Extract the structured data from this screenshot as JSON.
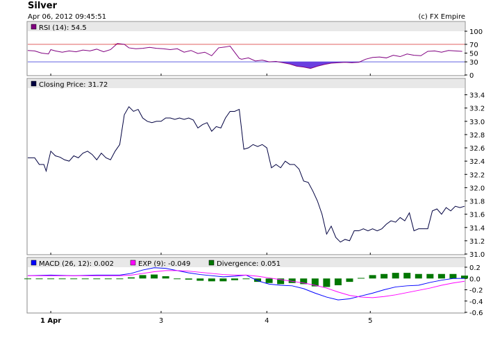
{
  "header": {
    "title": "Silver",
    "timestamp": "Apr 06, 2012 09:45:51",
    "credit": "(c) FX Empire"
  },
  "rsi": {
    "legend": "RSI (14): 54.5",
    "legend_color": "#800080",
    "overbought": 70,
    "oversold": 30,
    "y_ticks": [
      0,
      30,
      50,
      70,
      100
    ],
    "ylim": [
      0,
      100
    ]
  },
  "price": {
    "legend": "Closing Price: 31.72",
    "legend_color": "#000040",
    "y_ticks": [
      31.0,
      31.2,
      31.4,
      31.6,
      31.8,
      32.0,
      32.2,
      32.4,
      32.6,
      32.8,
      33.0,
      33.2,
      33.4
    ],
    "ylim": [
      31.0,
      33.5
    ]
  },
  "macd": {
    "legend_macd": "MACD (26, 12): 0.002",
    "legend_exp": "EXP (9): -0.049",
    "legend_div": "Divergence: 0.051",
    "colors": {
      "macd": "#0000ff",
      "exp": "#ff00ff",
      "div": "#007700"
    },
    "y_ticks": [
      -0.6,
      -0.4,
      -0.2,
      0.0,
      0.2
    ],
    "ylim": [
      -0.6,
      0.2
    ]
  },
  "x_axis": {
    "labels": [
      {
        "label": "1 Apr",
        "x": 0.1
      },
      {
        "label": "3",
        "x": 0.58
      },
      {
        "label": "4",
        "x": 1.04
      },
      {
        "label": "5",
        "x": 1.49
      }
    ]
  },
  "chart_data": [
    {
      "type": "line",
      "name": "RSI (14)",
      "x": [
        0,
        0.03,
        0.06,
        0.09,
        0.1,
        0.12,
        0.15,
        0.18,
        0.21,
        0.24,
        0.27,
        0.3,
        0.33,
        0.36,
        0.39,
        0.42,
        0.44,
        0.47,
        0.5,
        0.53,
        0.56,
        0.59,
        0.62,
        0.65,
        0.68,
        0.71,
        0.74,
        0.77,
        0.8,
        0.83,
        0.86,
        0.88,
        0.92,
        0.93,
        0.96,
        0.99,
        1.02,
        1.05,
        1.08,
        1.11,
        1.14,
        1.17,
        1.2,
        1.23,
        1.26,
        1.29,
        1.32,
        1.35,
        1.38,
        1.41,
        1.44,
        1.47,
        1.5,
        1.53,
        1.56,
        1.59,
        1.62,
        1.65,
        1.68,
        1.71,
        1.74,
        1.77,
        1.8,
        1.83,
        1.86,
        1.89
      ],
      "values": [
        56,
        55,
        50,
        48,
        58,
        55,
        52,
        55,
        53,
        57,
        55,
        59,
        53,
        58,
        72,
        70,
        62,
        60,
        61,
        63,
        61,
        60,
        58,
        60,
        52,
        56,
        49,
        52,
        44,
        62,
        64,
        66,
        38,
        36,
        39,
        32,
        34,
        30,
        31,
        28,
        25,
        20,
        18,
        15,
        20,
        24,
        27,
        28,
        29,
        28,
        29,
        36,
        40,
        41,
        39,
        45,
        42,
        48,
        45,
        44,
        54,
        55,
        52,
        56,
        55,
        54
      ]
    },
    {
      "type": "line",
      "name": "Closing Price",
      "x": [
        0,
        0.03,
        0.05,
        0.07,
        0.08,
        0.1,
        0.12,
        0.14,
        0.16,
        0.18,
        0.2,
        0.22,
        0.24,
        0.26,
        0.28,
        0.3,
        0.32,
        0.34,
        0.36,
        0.38,
        0.4,
        0.42,
        0.44,
        0.46,
        0.48,
        0.5,
        0.52,
        0.54,
        0.56,
        0.58,
        0.6,
        0.62,
        0.64,
        0.66,
        0.68,
        0.7,
        0.72,
        0.74,
        0.76,
        0.78,
        0.8,
        0.82,
        0.84,
        0.86,
        0.88,
        0.9,
        0.92,
        0.94,
        0.96,
        0.98,
        1.0,
        1.02,
        1.04,
        1.06,
        1.08,
        1.1,
        1.12,
        1.14,
        1.16,
        1.18,
        1.2,
        1.22,
        1.24,
        1.26,
        1.28,
        1.3,
        1.32,
        1.34,
        1.36,
        1.38,
        1.4,
        1.42,
        1.44,
        1.46,
        1.48,
        1.5,
        1.52,
        1.54,
        1.56,
        1.58,
        1.6,
        1.62,
        1.64,
        1.66,
        1.68,
        1.7,
        1.72,
        1.74,
        1.76,
        1.78,
        1.8,
        1.82,
        1.84,
        1.86,
        1.88,
        1.9
      ],
      "values": [
        32.45,
        32.45,
        32.35,
        32.35,
        32.25,
        32.55,
        32.48,
        32.46,
        32.42,
        32.4,
        32.48,
        32.45,
        32.52,
        32.55,
        32.5,
        32.42,
        32.52,
        32.45,
        32.42,
        32.55,
        32.65,
        33.1,
        33.22,
        33.15,
        33.18,
        33.05,
        33.0,
        32.98,
        33.0,
        33.0,
        33.05,
        33.05,
        33.03,
        33.05,
        33.03,
        33.05,
        33.02,
        32.9,
        32.95,
        32.98,
        32.85,
        32.92,
        32.9,
        33.05,
        33.15,
        33.15,
        33.18,
        32.58,
        32.6,
        32.65,
        32.62,
        32.65,
        32.6,
        32.3,
        32.35,
        32.3,
        32.4,
        32.35,
        32.35,
        32.28,
        32.1,
        32.08,
        31.95,
        31.8,
        31.6,
        31.3,
        31.42,
        31.25,
        31.18,
        31.22,
        31.2,
        31.35,
        31.35,
        31.38,
        31.35,
        31.38,
        31.35,
        31.38,
        31.45,
        31.5,
        31.48,
        31.55,
        31.5,
        31.62,
        31.35,
        31.38,
        31.38,
        31.38,
        31.65,
        31.68,
        31.6,
        31.7,
        31.65,
        31.72,
        31.7,
        31.72
      ]
    },
    {
      "type": "line",
      "name": "MACD (26, 12)",
      "x": [
        0,
        0.1,
        0.2,
        0.3,
        0.4,
        0.45,
        0.5,
        0.55,
        0.6,
        0.65,
        0.7,
        0.75,
        0.8,
        0.85,
        0.9,
        0.95,
        1.0,
        1.05,
        1.1,
        1.15,
        1.2,
        1.25,
        1.3,
        1.35,
        1.4,
        1.45,
        1.5,
        1.55,
        1.6,
        1.65,
        1.7,
        1.75,
        1.8,
        1.85,
        1.9
      ],
      "values": [
        0.05,
        0.06,
        0.05,
        0.06,
        0.06,
        0.09,
        0.15,
        0.19,
        0.18,
        0.14,
        0.1,
        0.07,
        0.05,
        0.03,
        0.04,
        0.06,
        -0.04,
        -0.1,
        -0.12,
        -0.13,
        -0.18,
        -0.26,
        -0.33,
        -0.38,
        -0.36,
        -0.31,
        -0.26,
        -0.2,
        -0.15,
        -0.13,
        -0.12,
        -0.07,
        -0.03,
        0.0,
        0.002
      ]
    },
    {
      "type": "line",
      "name": "EXP (9)",
      "x": [
        0,
        0.1,
        0.2,
        0.3,
        0.4,
        0.45,
        0.5,
        0.55,
        0.6,
        0.65,
        0.7,
        0.75,
        0.8,
        0.85,
        0.9,
        0.95,
        1.0,
        1.05,
        1.1,
        1.15,
        1.2,
        1.25,
        1.3,
        1.35,
        1.4,
        1.45,
        1.5,
        1.55,
        1.6,
        1.65,
        1.7,
        1.75,
        1.8,
        1.85,
        1.9
      ],
      "values": [
        0.05,
        0.05,
        0.05,
        0.05,
        0.05,
        0.06,
        0.09,
        0.12,
        0.14,
        0.14,
        0.13,
        0.11,
        0.09,
        0.07,
        0.06,
        0.06,
        0.04,
        0.01,
        -0.02,
        -0.05,
        -0.08,
        -0.12,
        -0.17,
        -0.24,
        -0.3,
        -0.33,
        -0.34,
        -0.32,
        -0.29,
        -0.25,
        -0.21,
        -0.17,
        -0.12,
        -0.08,
        -0.049
      ]
    },
    {
      "type": "bar",
      "name": "Divergence",
      "x": [
        0,
        0.05,
        0.1,
        0.15,
        0.2,
        0.25,
        0.3,
        0.35,
        0.4,
        0.45,
        0.5,
        0.55,
        0.6,
        0.65,
        0.7,
        0.75,
        0.8,
        0.85,
        0.9,
        0.95,
        1.0,
        1.05,
        1.1,
        1.15,
        1.2,
        1.25,
        1.3,
        1.35,
        1.4,
        1.45,
        1.5,
        1.55,
        1.6,
        1.65,
        1.7,
        1.75,
        1.8,
        1.85,
        1.9
      ],
      "values": [
        0.0,
        -0.01,
        0.0,
        0.0,
        -0.01,
        0.0,
        -0.01,
        0.0,
        -0.01,
        0.02,
        0.06,
        0.07,
        0.04,
        0.0,
        -0.02,
        -0.04,
        -0.05,
        -0.05,
        -0.03,
        0.0,
        -0.06,
        -0.08,
        -0.1,
        -0.08,
        -0.1,
        -0.14,
        -0.15,
        -0.12,
        -0.06,
        0.01,
        0.06,
        0.08,
        0.1,
        0.1,
        0.08,
        0.08,
        0.08,
        0.08,
        0.051
      ]
    }
  ]
}
